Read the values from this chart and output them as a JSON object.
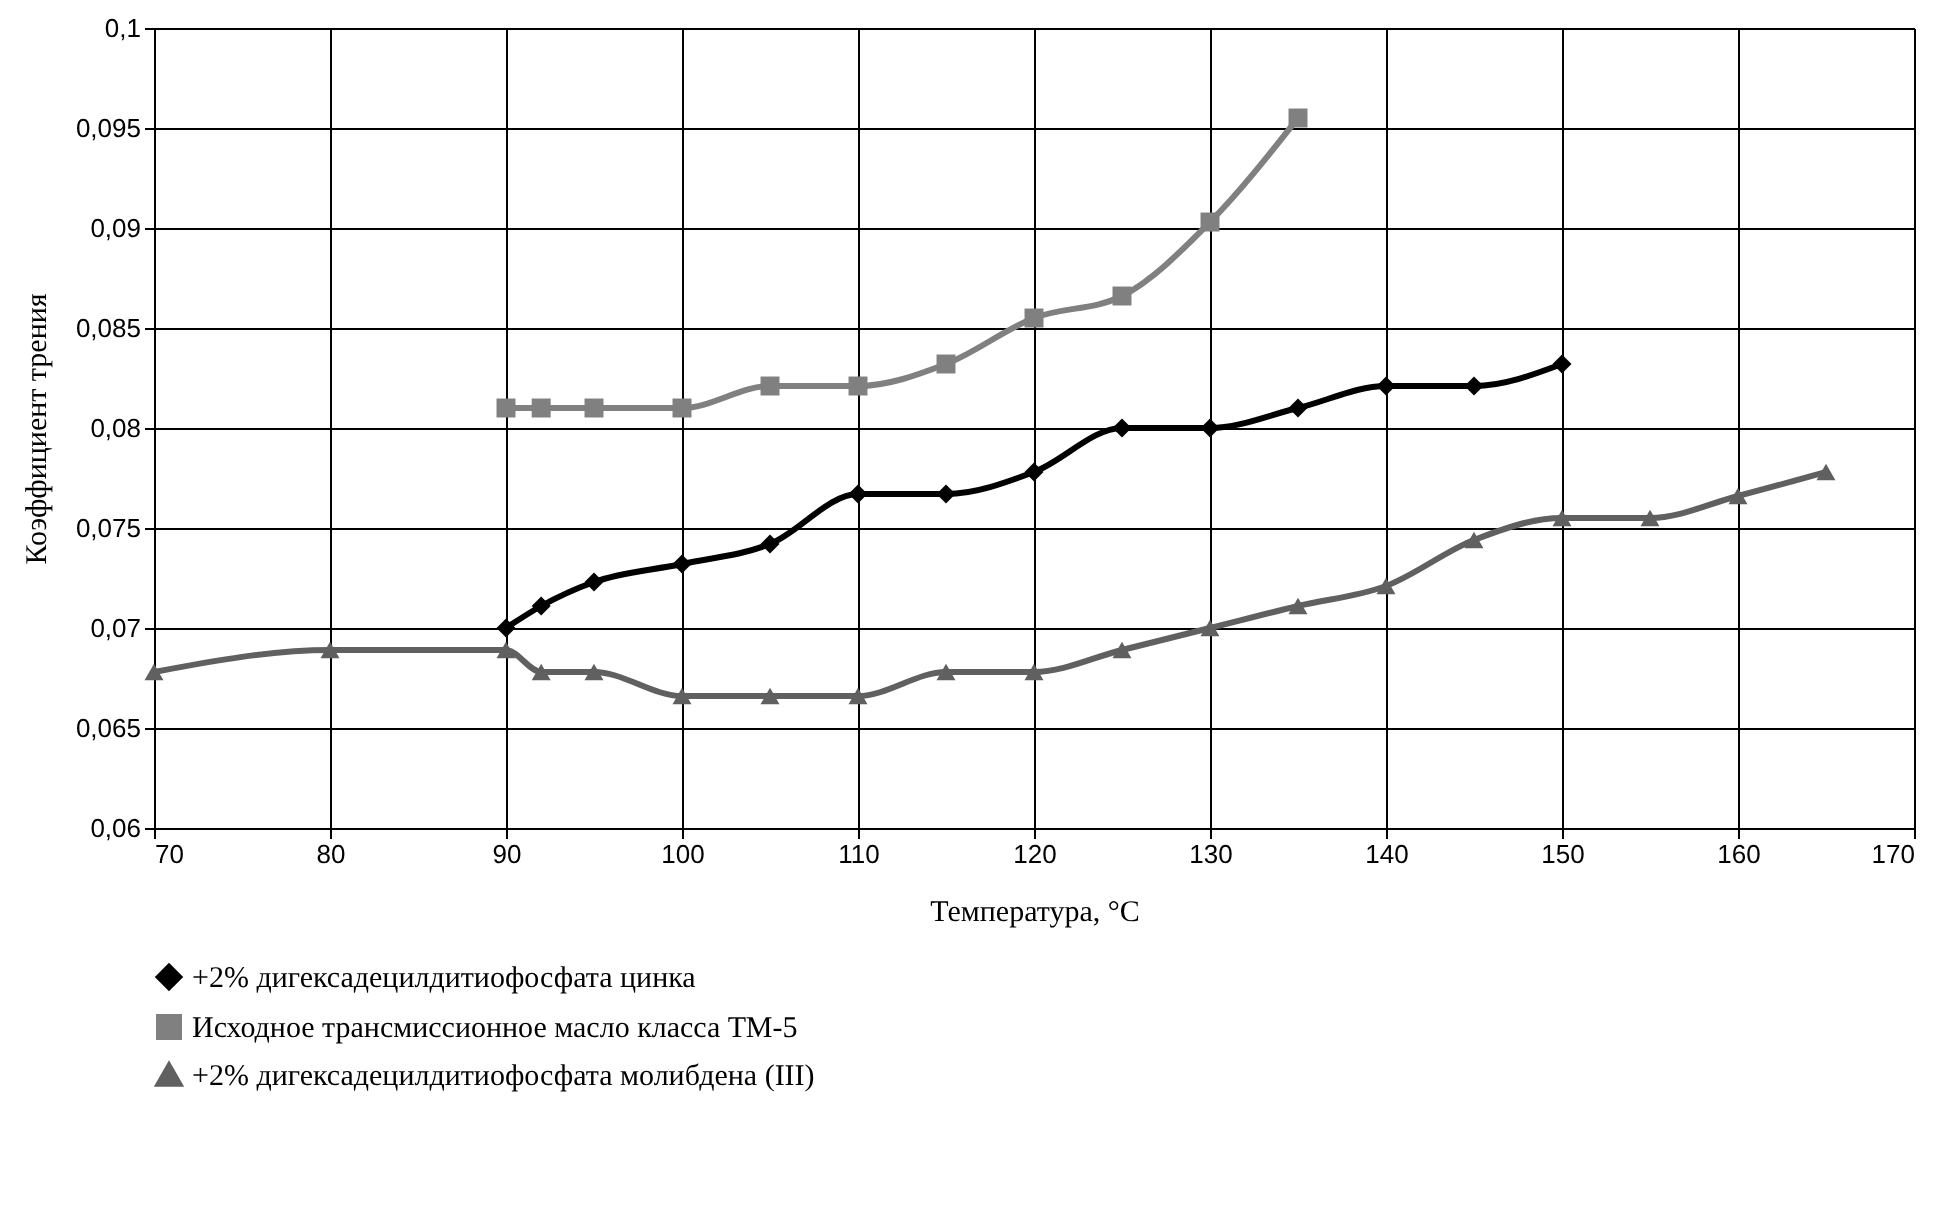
{
  "chart_data": {
    "type": "line",
    "xlabel": "Температура, °C",
    "ylabel": "Коэффициент трения",
    "xlim": [
      70,
      170
    ],
    "xticks": [
      70,
      80,
      90,
      100,
      110,
      120,
      130,
      140,
      150,
      160,
      170
    ],
    "ylim": [
      0.06,
      0.1
    ],
    "yticks": [
      {
        "value": 0.06,
        "label": "0,06"
      },
      {
        "value": 0.065,
        "label": "0,065"
      },
      {
        "value": 0.07,
        "label": "0,07"
      },
      {
        "value": 0.075,
        "label": "0,075"
      },
      {
        "value": 0.08,
        "label": "0,08"
      },
      {
        "value": 0.085,
        "label": "0,085"
      },
      {
        "value": 0.09,
        "label": "0,09"
      },
      {
        "value": 0.095,
        "label": "0,095"
      },
      {
        "value": 0.1,
        "label": "0,1"
      }
    ],
    "grid": true,
    "legend": "bottom",
    "line_style": "solid",
    "series": [
      {
        "name": "+2% дигексадецилдитиофосфата цинка",
        "color": "#000000",
        "marker": "diamond",
        "x": [
          90,
          92,
          95,
          100,
          105,
          110,
          115,
          120,
          125,
          130,
          135,
          140,
          145,
          150
        ],
        "values": [
          0.07,
          0.0711,
          0.0723,
          0.0732,
          0.0742,
          0.0767,
          0.0767,
          0.0778,
          0.08,
          0.08,
          0.081,
          0.0821,
          0.0821,
          0.0832
        ]
      },
      {
        "name": "Исходное трансмиссионное масло класса ТМ-5",
        "color": "#808080",
        "marker": "square",
        "x": [
          90,
          92,
          95,
          100,
          105,
          110,
          115,
          120,
          125,
          130,
          135
        ],
        "values": [
          0.081,
          0.081,
          0.081,
          0.081,
          0.0821,
          0.0821,
          0.0832,
          0.0855,
          0.0866,
          0.0903,
          0.0955
        ]
      },
      {
        "name": "+2% дигексадецилдитиофосфата молибдена (III)",
        "color": "#606060",
        "marker": "triangle",
        "x": [
          70,
          80,
          90,
          92,
          95,
          100,
          105,
          110,
          115,
          120,
          125,
          130,
          135,
          140,
          145,
          150,
          155,
          160,
          165
        ],
        "values": [
          0.0678,
          0.0689,
          0.0689,
          0.0678,
          0.0678,
          0.0666,
          0.0666,
          0.0666,
          0.0678,
          0.0678,
          0.0689,
          0.07,
          0.0711,
          0.0721,
          0.0744,
          0.0755,
          0.0755,
          0.0766,
          0.0778
        ]
      }
    ]
  }
}
